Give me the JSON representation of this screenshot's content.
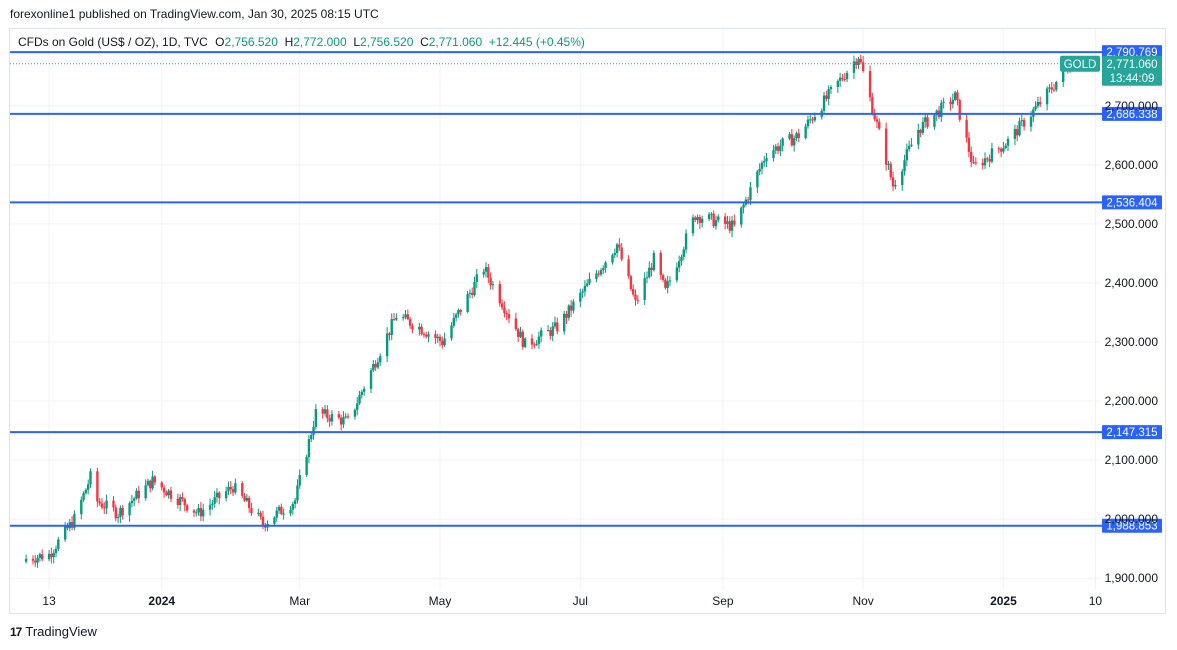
{
  "header": {
    "published": "forexonline1 published on TradingView.com, Jan 30, 2025 08:15 UTC"
  },
  "legend": {
    "symbol": "CFDs on Gold (US$ / OZ), 1D, TVC",
    "o_label": "O",
    "o_value": "2,756.520",
    "h_label": "H",
    "h_value": "2,772.000",
    "l_label": "L",
    "l_value": "2,756.520",
    "c_label": "C",
    "c_value": "2,771.060",
    "change": "+12.445 (+0.45%)"
  },
  "colors": {
    "up": "#089981",
    "down": "#f23645",
    "levels": "#2962ff",
    "last_price": "#26a69a",
    "grid": "#f0f3fa"
  },
  "chart_data": {
    "type": "candlestick",
    "ylim": [
      1880,
      2830
    ],
    "y_ticks": [
      "1,900.000",
      "2,000.000",
      "2,100.000",
      "2,200.000",
      "2,300.000",
      "2,400.000",
      "2,500.000",
      "2,600.000",
      "2,700.000"
    ],
    "y_tick_values": [
      1900,
      2000,
      2100,
      2200,
      2300,
      2400,
      2500,
      2600,
      2700
    ],
    "x_ticks": [
      "13",
      "2024",
      "Mar",
      "May",
      "Jul",
      "Sep",
      "Nov",
      "2025",
      "10"
    ],
    "x_tick_dates": [
      "2023-11-13",
      "2024-01-01",
      "2024-03-01",
      "2024-05-01",
      "2024-07-01",
      "2024-09-01",
      "2024-11-01",
      "2025-01-01",
      "2025-02-10"
    ],
    "x_range": [
      "2023-10-27",
      "2025-02-12"
    ],
    "levels": [
      {
        "value": 2790.769,
        "label": "2,790.769"
      },
      {
        "value": 2686.338,
        "label": "2,686.338"
      },
      {
        "value": 2536.404,
        "label": "2,536.404"
      },
      {
        "value": 2147.315,
        "label": "2,147.315"
      },
      {
        "value": 1988.853,
        "label": "1,988.853"
      }
    ],
    "last_price": {
      "symbol": "GOLD",
      "value": 2771.06,
      "label": "2,771.060",
      "countdown": "13:44:09"
    },
    "anchors": [
      [
        "2023-11-03",
        1933
      ],
      [
        "2023-11-13",
        1940
      ],
      [
        "2023-11-24",
        2000
      ],
      [
        "2023-12-01",
        2071
      ],
      [
        "2023-12-04",
        2030
      ],
      [
        "2023-12-13",
        2010
      ],
      [
        "2023-12-28",
        2065
      ],
      [
        "2024-01-17",
        2010
      ],
      [
        "2024-02-01",
        2055
      ],
      [
        "2024-02-14",
        1992
      ],
      [
        "2024-02-28",
        2032
      ],
      [
        "2024-03-08",
        2180
      ],
      [
        "2024-03-22",
        2165
      ],
      [
        "2024-04-12",
        2345
      ],
      [
        "2024-04-22",
        2325
      ],
      [
        "2024-05-02",
        2300
      ],
      [
        "2024-05-20",
        2425
      ],
      [
        "2024-06-07",
        2295
      ],
      [
        "2024-06-21",
        2325
      ],
      [
        "2024-07-17",
        2465
      ],
      [
        "2024-07-25",
        2365
      ],
      [
        "2024-08-02",
        2440
      ],
      [
        "2024-08-07",
        2385
      ],
      [
        "2024-08-20",
        2515
      ],
      [
        "2024-09-06",
        2495
      ],
      [
        "2024-09-20",
        2620
      ],
      [
        "2024-10-04",
        2650
      ],
      [
        "2024-10-30",
        2785
      ],
      [
        "2024-11-14",
        2565
      ],
      [
        "2024-11-25",
        2660
      ],
      [
        "2024-12-11",
        2715
      ],
      [
        "2024-12-19",
        2595
      ],
      [
        "2025-01-03",
        2640
      ],
      [
        "2025-01-17",
        2705
      ],
      [
        "2025-01-30",
        2771
      ]
    ]
  }
}
